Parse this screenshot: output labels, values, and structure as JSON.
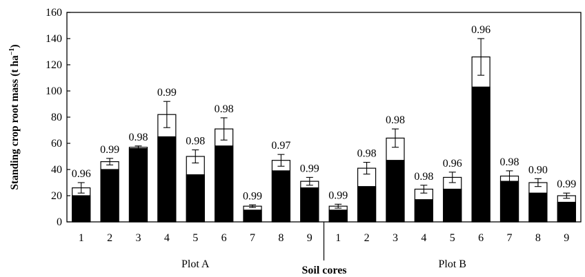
{
  "chart_data": {
    "type": "bar",
    "stacked": true,
    "ylabel": "Standing crop root mass (t ha",
    "ylabel_sup": "−1",
    "ylabel_close": ")",
    "xlabel": "Soil cores",
    "ylim": [
      0,
      160
    ],
    "y_ticks": [
      "0",
      "20",
      "40",
      "60",
      "80",
      "100",
      "120",
      "140",
      "160"
    ],
    "groups": [
      {
        "label": "Plot A",
        "categories": [
          "1",
          "2",
          "3",
          "4",
          "5",
          "6",
          "7",
          "8",
          "9"
        ],
        "lower": [
          20,
          40,
          56,
          65,
          36,
          58,
          9,
          39,
          26
        ],
        "total": [
          26,
          46,
          57,
          82,
          50,
          71,
          12,
          47,
          31
        ],
        "error": [
          4,
          2.5,
          1,
          10,
          5,
          8.5,
          1,
          4.5,
          3
        ],
        "labels": [
          "0.96",
          "0.99",
          "0.98",
          "0.99",
          "0.98",
          "0.98",
          "0.99",
          "0.97",
          "0.99"
        ]
      },
      {
        "label": "Plot B",
        "categories": [
          "1",
          "2",
          "3",
          "4",
          "5",
          "6",
          "7",
          "8",
          "9"
        ],
        "lower": [
          9,
          27,
          47,
          17,
          25,
          103,
          31,
          22,
          15
        ],
        "total": [
          12,
          41,
          64,
          25,
          34,
          126,
          35,
          30,
          20
        ],
        "error": [
          1.5,
          4.5,
          7,
          3,
          4,
          14,
          4,
          3,
          2
        ],
        "labels": [
          "0.99",
          "0.98",
          "0.98",
          "0.98",
          "0.96",
          "0.96",
          "0.98",
          "0.90",
          "0.99"
        ]
      }
    ],
    "colors": {
      "lower": "#000000",
      "upper": "#ffffff",
      "stroke": "#000000"
    }
  }
}
